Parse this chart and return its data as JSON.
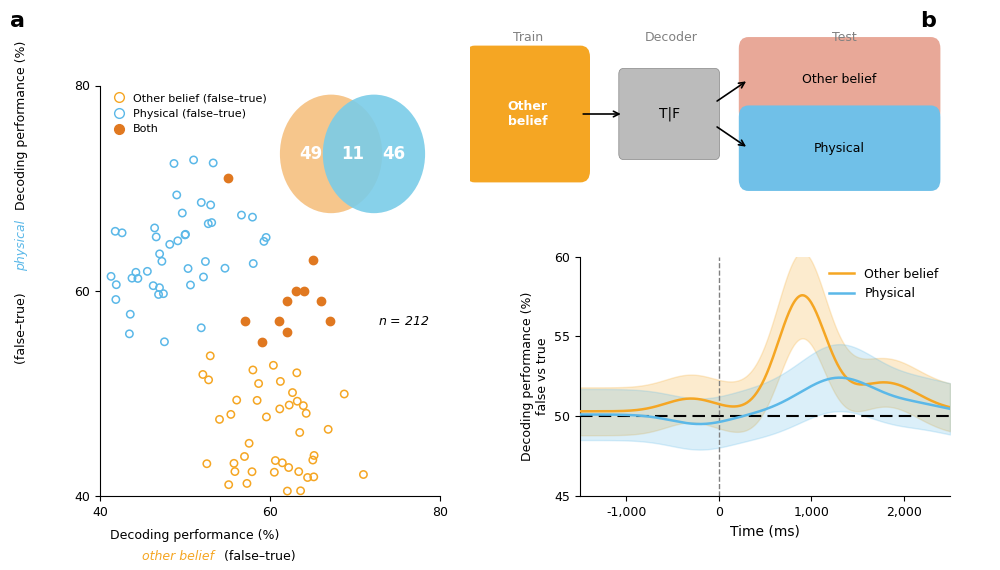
{
  "orange_color": "#F5A623",
  "blue_color": "#5BB8E8",
  "both_color": "#E07820",
  "venn_orange": "#F5C080",
  "venn_blue": "#7ACCE8",
  "scatter_xlim": [
    40,
    80
  ],
  "scatter_ylim": [
    40,
    80
  ],
  "scatter_xticks": [
    40,
    60,
    80
  ],
  "scatter_yticks": [
    40,
    60,
    80
  ],
  "n_label": "n = 212",
  "venn_49": "49",
  "venn_11": "11",
  "venn_46": "46",
  "time_xlim": [
    -1500,
    2500
  ],
  "time_ylim": [
    45,
    60
  ],
  "time_yticks": [
    45,
    50,
    55,
    60
  ],
  "time_xticks": [
    -1000,
    0,
    1000,
    2000
  ],
  "time_xticklabels": [
    "-1,000",
    "0",
    "1,000",
    "2,000"
  ],
  "label_a": "a",
  "label_b": "b",
  "diagram_train": "Train",
  "diagram_decoder": "Decoder",
  "diagram_test": "Test",
  "diagram_ob_box": "Other\nbelief",
  "diagram_tf_box": "T|F",
  "diagram_ob_test": "Other belief",
  "diagram_phys_test": "Physical",
  "legend_ob": "Other belief (false–true)",
  "legend_phys": "Physical (false–true)",
  "legend_both": "Both",
  "line_legend_ob": "Other belief",
  "line_legend_phys": "Physical",
  "xlabel_scatter_black1": "Decoding performance (%)",
  "xlabel_scatter_orange": "other belief",
  "xlabel_scatter_black2": " (false–true)",
  "ylabel_scatter_black1": "Decoding performance (%)",
  "ylabel_scatter_blue": "physical",
  "ylabel_scatter_black2": " (false–true)",
  "ylabel_line": "Decoding performance (%)\nfalse vs true",
  "xlabel_line": "Time (ms)"
}
